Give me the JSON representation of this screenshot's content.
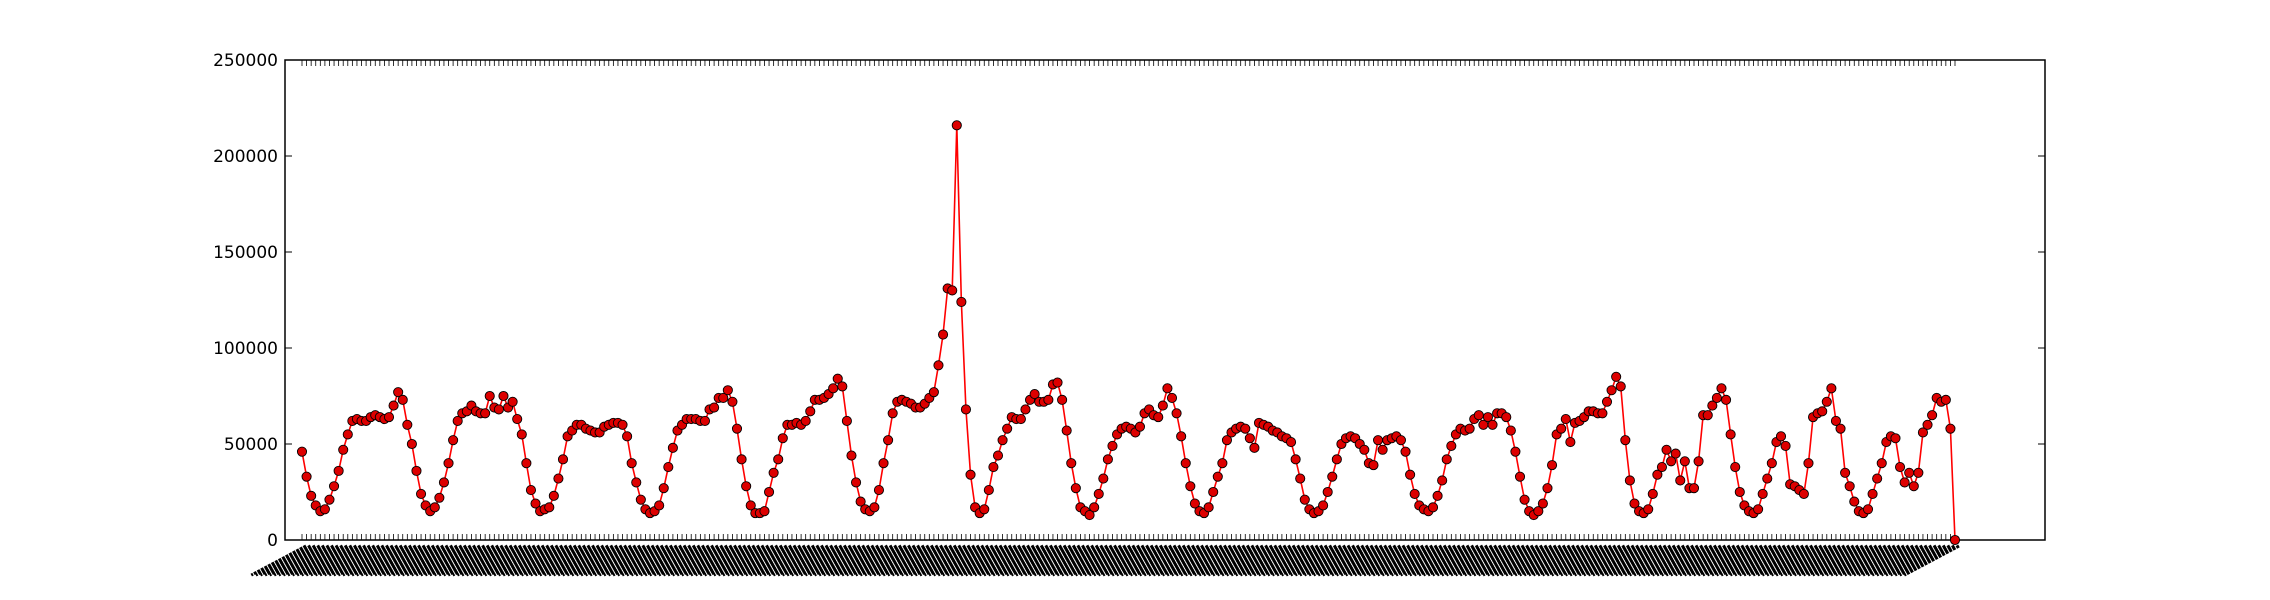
{
  "chart_data": {
    "type": "line",
    "title": "",
    "xlabel": "",
    "ylabel": "",
    "ylim": [
      0,
      250000
    ],
    "yticks": [
      0,
      50000,
      100000,
      150000,
      200000,
      250000
    ],
    "ytick_labels": [
      "0",
      "50000",
      "100000",
      "150000",
      "200000",
      "250000"
    ],
    "x_tick_labels_note": "dense rotated date-hour labels, unreadable",
    "grid": false,
    "legend": "none",
    "series": [
      {
        "color": "#ff0000",
        "marker_face": "#dd0000",
        "values": [
          46000,
          33000,
          23000,
          18000,
          15000,
          16000,
          21000,
          28000,
          36000,
          47000,
          55000,
          62000,
          63000,
          62000,
          62000,
          64000,
          65000,
          64000,
          63000,
          64000,
          70000,
          77000,
          73000,
          60000,
          50000,
          36000,
          24000,
          18000,
          15000,
          17000,
          22000,
          30000,
          40000,
          52000,
          62000,
          66000,
          67000,
          70000,
          67000,
          66000,
          66000,
          75000,
          69000,
          68000,
          75000,
          69000,
          72000,
          63000,
          55000,
          40000,
          26000,
          19000,
          15000,
          16000,
          17000,
          23000,
          32000,
          42000,
          54000,
          57000,
          60000,
          60000,
          58000,
          57000,
          56000,
          56000,
          59000,
          60000,
          61000,
          61000,
          60000,
          54000,
          40000,
          30000,
          21000,
          16000,
          14000,
          15000,
          18000,
          27000,
          38000,
          48000,
          57000,
          60000,
          63000,
          63000,
          63000,
          62000,
          62000,
          68000,
          69000,
          74000,
          74000,
          78000,
          72000,
          58000,
          42000,
          28000,
          18000,
          14000,
          14000,
          15000,
          25000,
          35000,
          42000,
          53000,
          60000,
          60000,
          61000,
          60000,
          62000,
          67000,
          73000,
          73000,
          74000,
          76000,
          79000,
          84000,
          80000,
          62000,
          44000,
          30000,
          20000,
          16000,
          15000,
          17000,
          26000,
          40000,
          52000,
          66000,
          72000,
          73000,
          72000,
          71000,
          69000,
          69000,
          71000,
          74000,
          77000,
          91000,
          107000,
          131000,
          130000,
          216000,
          124000,
          68000,
          34000,
          17000,
          14000,
          16000,
          26000,
          38000,
          44000,
          52000,
          58000,
          64000,
          63000,
          63000,
          68000,
          73000,
          76000,
          72000,
          72000,
          73000,
          81000,
          82000,
          73000,
          57000,
          40000,
          27000,
          17000,
          15000,
          13000,
          17000,
          24000,
          32000,
          42000,
          49000,
          55000,
          58000,
          59000,
          58000,
          56000,
          59000,
          66000,
          68000,
          65000,
          64000,
          70000,
          79000,
          74000,
          66000,
          54000,
          40000,
          28000,
          19000,
          15000,
          14000,
          17000,
          25000,
          33000,
          40000,
          52000,
          56000,
          58000,
          59000,
          58000,
          53000,
          48000,
          61000,
          60000,
          59000,
          57000,
          56000,
          54000,
          53000,
          51000,
          42000,
          32000,
          21000,
          16000,
          14000,
          15000,
          18000,
          25000,
          33000,
          42000,
          50000,
          53000,
          54000,
          53000,
          50000,
          47000,
          40000,
          39000,
          52000,
          47000,
          52000,
          53000,
          54000,
          52000,
          46000,
          34000,
          24000,
          18000,
          16000,
          15000,
          17000,
          23000,
          31000,
          42000,
          49000,
          55000,
          58000,
          57000,
          58000,
          63000,
          65000,
          60000,
          64000,
          60000,
          66000,
          66000,
          64000,
          57000,
          46000,
          33000,
          21000,
          15000,
          13000,
          15000,
          19000,
          27000,
          39000,
          55000,
          58000,
          63000,
          51000,
          61000,
          62000,
          64000,
          67000,
          67000,
          66000,
          66000,
          72000,
          78000,
          85000,
          80000,
          52000,
          31000,
          19000,
          15000,
          14000,
          16000,
          24000,
          34000,
          38000,
          47000,
          41000,
          45000,
          31000,
          41000,
          27000,
          27000,
          41000,
          65000,
          65000,
          70000,
          74000,
          79000,
          73000,
          55000,
          38000,
          25000,
          18000,
          15000,
          14000,
          16000,
          24000,
          32000,
          40000,
          51000,
          54000,
          49000,
          29000,
          28000,
          26000,
          24000,
          40000,
          64000,
          66000,
          67000,
          72000,
          79000,
          62000,
          58000,
          35000,
          28000,
          20000,
          15000,
          14000,
          16000,
          24000,
          32000,
          40000,
          51000,
          54000,
          53000,
          38000,
          30000,
          35000,
          28000,
          35000,
          56000,
          60000,
          65000,
          74000,
          72000,
          73000,
          58000,
          0
        ]
      }
    ]
  }
}
